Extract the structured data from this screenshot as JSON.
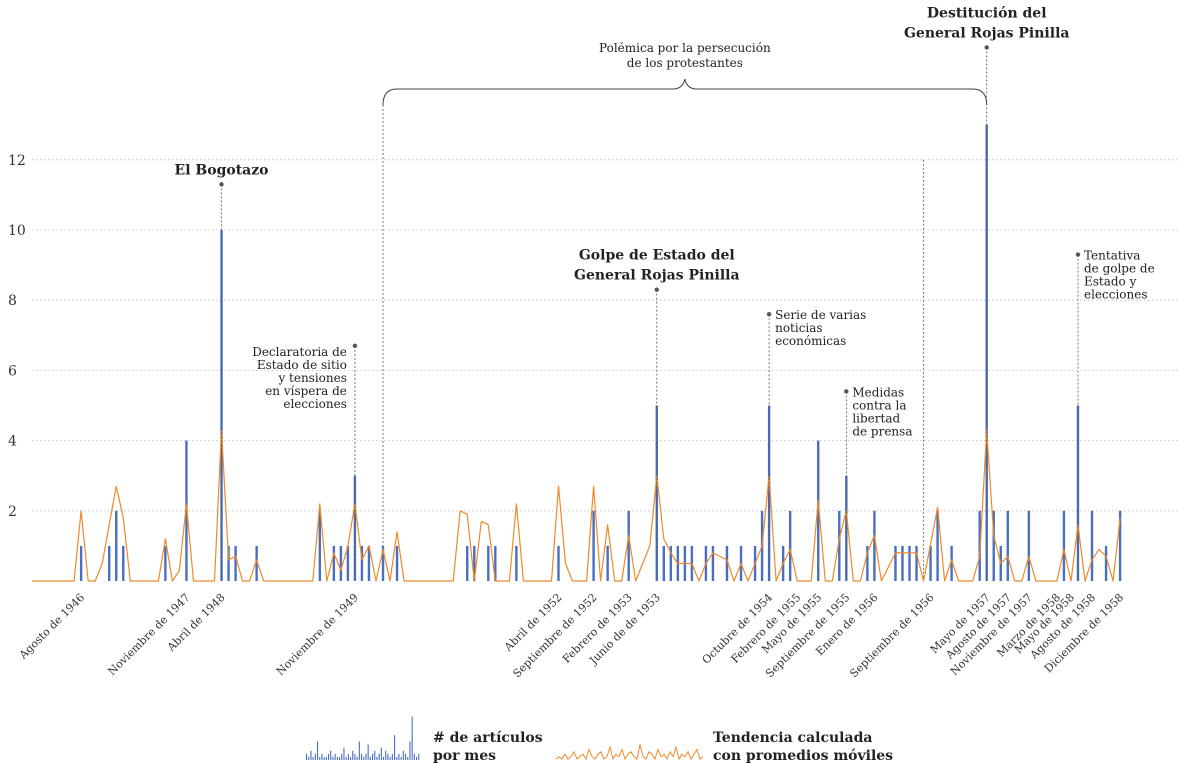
{
  "chart_data": {
    "type": "bar",
    "title": "",
    "xlabel": "",
    "ylabel": "",
    "ylim": [
      0,
      13.5
    ],
    "y_ticks": [
      2,
      4,
      6,
      8,
      10,
      12
    ],
    "grid": true,
    "colors": {
      "bars": "#4a6fbf",
      "trend": "#ee8a2a"
    },
    "start": "1946-01",
    "bar_series": {
      "name": "# de artículos por mes",
      "points": [
        [
          "1946-08",
          1
        ],
        [
          "1946-12",
          1
        ],
        [
          "1947-01",
          2
        ],
        [
          "1947-02",
          1
        ],
        [
          "1947-08",
          1
        ],
        [
          "1947-11",
          4
        ],
        [
          "1948-04",
          10
        ],
        [
          "1948-05",
          1
        ],
        [
          "1948-06",
          1
        ],
        [
          "1948-09",
          1
        ],
        [
          "1949-06",
          2
        ],
        [
          "1949-08",
          1
        ],
        [
          "1949-09",
          1
        ],
        [
          "1949-10",
          1
        ],
        [
          "1949-11",
          3
        ],
        [
          "1949-12",
          1
        ],
        [
          "1950-01",
          1
        ],
        [
          "1950-03",
          1
        ],
        [
          "1950-05",
          1
        ],
        [
          "1951-03",
          1
        ],
        [
          "1951-04",
          1
        ],
        [
          "1951-06",
          1
        ],
        [
          "1951-07",
          1
        ],
        [
          "1951-10",
          1
        ],
        [
          "1952-04",
          1
        ],
        [
          "1952-09",
          2
        ],
        [
          "1952-11",
          1
        ],
        [
          "1953-02",
          2
        ],
        [
          "1953-06",
          5
        ],
        [
          "1953-07",
          1
        ],
        [
          "1953-08",
          1
        ],
        [
          "1953-09",
          1
        ],
        [
          "1953-10",
          1
        ],
        [
          "1953-11",
          1
        ],
        [
          "1954-01",
          1
        ],
        [
          "1954-02",
          1
        ],
        [
          "1954-04",
          1
        ],
        [
          "1954-06",
          1
        ],
        [
          "1954-08",
          1
        ],
        [
          "1954-09",
          2
        ],
        [
          "1954-10",
          5
        ],
        [
          "1954-12",
          1
        ],
        [
          "1955-01",
          2
        ],
        [
          "1955-05",
          4
        ],
        [
          "1955-08",
          2
        ],
        [
          "1955-09",
          3
        ],
        [
          "1955-12",
          1
        ],
        [
          "1956-01",
          2
        ],
        [
          "1956-04",
          1
        ],
        [
          "1956-05",
          1
        ],
        [
          "1956-06",
          1
        ],
        [
          "1956-07",
          1
        ],
        [
          "1956-09",
          1
        ],
        [
          "1956-10",
          2
        ],
        [
          "1956-12",
          1
        ],
        [
          "1957-04",
          2
        ],
        [
          "1957-05",
          13
        ],
        [
          "1957-06",
          2
        ],
        [
          "1957-07",
          1
        ],
        [
          "1957-08",
          2
        ],
        [
          "1957-11",
          2
        ],
        [
          "1958-04",
          2
        ],
        [
          "1958-06",
          5
        ],
        [
          "1958-08",
          2
        ],
        [
          "1958-10",
          1
        ],
        [
          "1958-12",
          2
        ]
      ]
    },
    "line_series": {
      "name": "Tendencia calculada con promedios móviles",
      "points": [
        [
          "1946-01",
          0
        ],
        [
          "1946-07",
          0
        ],
        [
          "1946-08",
          2
        ],
        [
          "1946-09",
          0
        ],
        [
          "1946-10",
          0
        ],
        [
          "1946-11",
          0.5
        ],
        [
          "1947-01",
          2.7
        ],
        [
          "1947-02",
          1.8
        ],
        [
          "1947-03",
          0
        ],
        [
          "1947-07",
          0
        ],
        [
          "1947-08",
          1.2
        ],
        [
          "1947-09",
          0
        ],
        [
          "1947-10",
          0.3
        ],
        [
          "1947-11",
          2.2
        ],
        [
          "1947-12",
          0
        ],
        [
          "1948-03",
          0
        ],
        [
          "1948-04",
          4.3
        ],
        [
          "1948-05",
          0.6
        ],
        [
          "1948-06",
          0.7
        ],
        [
          "1948-07",
          0
        ],
        [
          "1948-08",
          0
        ],
        [
          "1948-09",
          0.6
        ],
        [
          "1948-10",
          0
        ],
        [
          "1949-05",
          0
        ],
        [
          "1949-06",
          2.2
        ],
        [
          "1949-07",
          0
        ],
        [
          "1949-08",
          0.8
        ],
        [
          "1949-09",
          0.3
        ],
        [
          "1949-10",
          1
        ],
        [
          "1949-11",
          2.2
        ],
        [
          "1949-12",
          0.6
        ],
        [
          "1950-01",
          1
        ],
        [
          "1950-02",
          0
        ],
        [
          "1950-03",
          0.9
        ],
        [
          "1950-04",
          0
        ],
        [
          "1950-05",
          1.4
        ],
        [
          "1950-06",
          0
        ],
        [
          "1951-01",
          0
        ],
        [
          "1951-02",
          2
        ],
        [
          "1951-03",
          1.9
        ],
        [
          "1951-04",
          0
        ],
        [
          "1951-05",
          1.7
        ],
        [
          "1951-06",
          1.6
        ],
        [
          "1951-07",
          0
        ],
        [
          "1951-09",
          0
        ],
        [
          "1951-10",
          2.2
        ],
        [
          "1951-11",
          0
        ],
        [
          "1952-03",
          0
        ],
        [
          "1952-04",
          2.7
        ],
        [
          "1952-05",
          0.5
        ],
        [
          "1952-06",
          0
        ],
        [
          "1952-08",
          0
        ],
        [
          "1952-09",
          2.7
        ],
        [
          "1952-10",
          0
        ],
        [
          "1952-11",
          1.6
        ],
        [
          "1952-12",
          0
        ],
        [
          "1953-01",
          0
        ],
        [
          "1953-02",
          1.3
        ],
        [
          "1953-03",
          0
        ],
        [
          "1953-05",
          1
        ],
        [
          "1953-06",
          3
        ],
        [
          "1953-07",
          1.2
        ],
        [
          "1953-08",
          0.8
        ],
        [
          "1953-09",
          0.5
        ],
        [
          "1953-11",
          0.5
        ],
        [
          "1953-12",
          0
        ],
        [
          "1954-01",
          0.5
        ],
        [
          "1954-02",
          0.8
        ],
        [
          "1954-04",
          0.6
        ],
        [
          "1954-05",
          0
        ],
        [
          "1954-06",
          0.5
        ],
        [
          "1954-07",
          0
        ],
        [
          "1954-08",
          0.5
        ],
        [
          "1954-09",
          1
        ],
        [
          "1954-10",
          3
        ],
        [
          "1954-11",
          0
        ],
        [
          "1954-12",
          0.5
        ],
        [
          "1955-01",
          0.9
        ],
        [
          "1955-02",
          0
        ],
        [
          "1955-04",
          0
        ],
        [
          "1955-05",
          2.3
        ],
        [
          "1955-06",
          0
        ],
        [
          "1955-07",
          0
        ],
        [
          "1955-08",
          1.2
        ],
        [
          "1955-09",
          2
        ],
        [
          "1955-10",
          0
        ],
        [
          "1955-11",
          0
        ],
        [
          "1955-12",
          0.8
        ],
        [
          "1956-01",
          1.3
        ],
        [
          "1956-02",
          0
        ],
        [
          "1956-04",
          0.8
        ],
        [
          "1956-07",
          0.8
        ],
        [
          "1956-08",
          0
        ],
        [
          "1956-10",
          2.1
        ],
        [
          "1956-11",
          0
        ],
        [
          "1956-12",
          0.6
        ],
        [
          "1957-01",
          0
        ],
        [
          "1957-03",
          0
        ],
        [
          "1957-04",
          0.7
        ],
        [
          "1957-05",
          4.3
        ],
        [
          "1957-06",
          1.3
        ],
        [
          "1957-07",
          0.5
        ],
        [
          "1957-08",
          0.7
        ],
        [
          "1957-09",
          0
        ],
        [
          "1957-10",
          0
        ],
        [
          "1957-11",
          0.7
        ],
        [
          "1957-12",
          0
        ],
        [
          "1958-03",
          0
        ],
        [
          "1958-04",
          0.9
        ],
        [
          "1958-05",
          0
        ],
        [
          "1958-06",
          1.6
        ],
        [
          "1958-07",
          0
        ],
        [
          "1958-08",
          0.6
        ],
        [
          "1958-09",
          0.9
        ],
        [
          "1958-10",
          0.7
        ],
        [
          "1958-11",
          0
        ],
        [
          "1958-12",
          1.8
        ]
      ]
    },
    "x_ticks": [
      {
        "date": "1946-08",
        "label": "Agosto de 1946"
      },
      {
        "date": "1947-11",
        "label": "Noviembre de 1947"
      },
      {
        "date": "1948-04",
        "label": "Abril de 1948"
      },
      {
        "date": "1949-11",
        "label": "Noviembre de 1949"
      },
      {
        "date": "1952-04",
        "label": "Abril de 1952"
      },
      {
        "date": "1952-09",
        "label": "Septiembre de 1952"
      },
      {
        "date": "1953-02",
        "label": "Febrero de 1953"
      },
      {
        "date": "1953-06",
        "label": "Junio de de 1953"
      },
      {
        "date": "1954-10",
        "label": "Octubre de 1954"
      },
      {
        "date": "1955-02",
        "label": "Febrero de 1955"
      },
      {
        "date": "1955-05",
        "label": "Mayo de 1955"
      },
      {
        "date": "1955-09",
        "label": "Septiembre de 1955"
      },
      {
        "date": "1956-01",
        "label": "Enero de 1956"
      },
      {
        "date": "1956-09",
        "label": "Septiembre de 1956"
      },
      {
        "date": "1957-05",
        "label": "Mayo de 1957"
      },
      {
        "date": "1957-08",
        "label": "Agosto de 1957"
      },
      {
        "date": "1957-11",
        "label": "Noviembre de 1957"
      },
      {
        "date": "1958-03",
        "label": "Marzo de 1958"
      },
      {
        "date": "1958-05",
        "label": "Mayo de 1958"
      },
      {
        "date": "1958-08",
        "label": "Agosto de 1958"
      },
      {
        "date": "1958-12",
        "label": "Diciembre de 1958"
      }
    ],
    "annotations": [
      {
        "date": "1948-04",
        "value": 11.3,
        "lines": [
          "El Bogotazo"
        ],
        "bold": true
      },
      {
        "date": "1949-11",
        "value": 6.7,
        "lines": [
          "Declaratoria de",
          "Estado de sitio",
          "y tensiones",
          "en víspera de",
          "elecciones"
        ],
        "bold": false
      },
      {
        "date": "1953-06",
        "value": 8.3,
        "lines": [
          "Golpe de Estado del",
          "General Rojas Pinilla"
        ],
        "bold": true
      },
      {
        "date": "1954-10",
        "value": 7.6,
        "lines": [
          "Serie de varias",
          "noticias",
          "económicas"
        ],
        "bold": false
      },
      {
        "date": "1955-09",
        "value": 5.4,
        "lines": [
          "Medidas",
          "contra la",
          "libertad",
          "de prensa"
        ],
        "bold": false
      },
      {
        "date": "1957-05",
        "value": 15.2,
        "lines": [
          "Destitución del",
          "General Rojas Pinilla"
        ],
        "bold": true
      },
      {
        "date": "1958-06",
        "value": 9.3,
        "lines": [
          "Tentativa",
          "de golpe de",
          "Estado y",
          "elecciones"
        ],
        "bold": false
      }
    ],
    "period": {
      "label_lines": [
        "Polémica por la persecución",
        "de los protestantes"
      ],
      "start": "1950-03",
      "end": "1957-05",
      "marker": "1956-08"
    },
    "legend": {
      "bars_label_lines": [
        "# de artículos",
        "por mes"
      ],
      "line_label_lines": [
        "Tendencia calculada",
        "con promedios móviles"
      ]
    }
  }
}
